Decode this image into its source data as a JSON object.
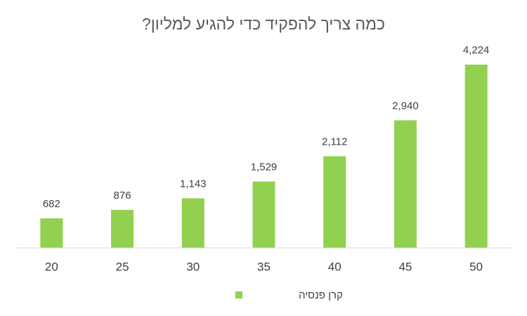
{
  "chart_data": {
    "type": "bar",
    "title": "כמה צריך להפקיד כדי להגיע למליון?",
    "categories": [
      "20",
      "25",
      "30",
      "35",
      "40",
      "45",
      "50"
    ],
    "series": [
      {
        "name": "קרן פנסיה",
        "color": "#92d050",
        "values": [
          682,
          876,
          1143,
          1529,
          2112,
          2940,
          4224
        ],
        "value_labels": [
          "682",
          "876",
          "1,143",
          "1,529",
          "2,112",
          "2,940",
          "4,224"
        ]
      }
    ],
    "legend": "bottom"
  }
}
